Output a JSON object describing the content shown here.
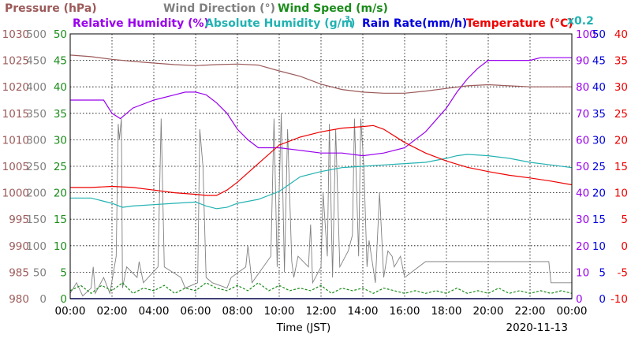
{
  "chart_data": {
    "type": "line",
    "date": "2020-11-13",
    "xlabel": "Time (JST)",
    "x_ticks": [
      "00:00",
      "02:00",
      "04:00",
      "06:00",
      "08:00",
      "10:00",
      "12:00",
      "14:00",
      "16:00",
      "18:00",
      "20:00",
      "22:00",
      "00:00"
    ],
    "legend": [
      {
        "label": "Pressure (hPa)",
        "color": "#9c5a5a"
      },
      {
        "label": "Wind Direction (°)",
        "color": "#808080"
      },
      {
        "label": "Wind Speed (m/s)",
        "color": "#1a8c1a"
      },
      {
        "label": "Relative Humidity (%)",
        "color": "#9900ee"
      },
      {
        "label": "Absolute Humidity (g/m",
        "sup": "3",
        "tail": ")",
        "color": "#22b2b2"
      },
      {
        "label": "Rain Rate(mm/h)",
        "color": "#0000dd"
      },
      {
        "label": "Temperature (°C)",
        "color": "#ee0000"
      },
      {
        "label": "x0.2",
        "color": "#22b2b2"
      }
    ],
    "axes": {
      "pressure": {
        "color": "#9c5a5a",
        "range": [
          980,
          1030
        ],
        "ticks": [
          "1030",
          "1025",
          "1020",
          "1015",
          "1010",
          "1005",
          "1000",
          "995",
          "990",
          "985",
          "980"
        ]
      },
      "wind_direction": {
        "color": "#808080",
        "range": [
          0,
          500
        ],
        "ticks": [
          "500",
          "450",
          "400",
          "350",
          "300",
          "250",
          "200",
          "150",
          "100",
          "50",
          "0"
        ]
      },
      "wind_speed": {
        "color": "#1a8c1a",
        "range": [
          0,
          50
        ],
        "ticks": [
          "50",
          "45",
          "40",
          "35",
          "30",
          "25",
          "20",
          "15",
          "10",
          "5",
          "0"
        ]
      },
      "relative_humidity": {
        "color": "#9900ee",
        "range": [
          0,
          100
        ],
        "ticks": [
          "100",
          "90",
          "80",
          "70",
          "60",
          "50",
          "40",
          "30",
          "20",
          "10",
          "0"
        ]
      },
      "rain_rate": {
        "color": "#0000dd",
        "range": [
          0,
          50
        ],
        "ticks": [
          "50",
          "45",
          "40",
          "35",
          "30",
          "25",
          "20",
          "15",
          "10",
          "5",
          "0"
        ]
      },
      "temperature": {
        "color": "#ee0000",
        "range": [
          -10,
          40
        ],
        "ticks": [
          "40",
          "35",
          "30",
          "25",
          "20",
          "15",
          "10",
          "5",
          "0",
          "-5",
          "-10"
        ]
      }
    },
    "grid": true,
    "series": [
      {
        "name": "Pressure (hPa)",
        "axis": "pressure",
        "color": "#9c5a5a",
        "x": [
          0,
          1,
          2,
          3,
          4,
          5,
          6,
          7,
          8,
          9,
          10,
          11,
          12,
          13,
          14,
          15,
          16,
          17,
          18,
          19,
          20,
          21,
          22,
          23,
          24
        ],
        "y": [
          1026,
          1025.7,
          1025.2,
          1024.8,
          1024.5,
          1024.2,
          1024,
          1024.2,
          1024.3,
          1024.1,
          1023,
          1022,
          1020.5,
          1019.5,
          1019,
          1018.8,
          1018.8,
          1019.2,
          1019.7,
          1020.2,
          1020.4,
          1020.2,
          1020,
          1020,
          1020
        ]
      },
      {
        "name": "Relative Humidity (%)",
        "axis": "relative_humidity",
        "color": "#9900ee",
        "x": [
          0,
          1,
          1.6,
          2,
          2.4,
          2.7,
          3,
          4,
          5,
          5.5,
          6,
          6.5,
          7,
          7.5,
          8,
          8.5,
          9,
          9.5,
          10,
          11,
          12,
          13,
          14,
          15,
          16,
          17,
          18,
          18.5,
          19,
          19.5,
          20,
          21,
          22,
          22.5,
          23,
          24
        ],
        "y": [
          75,
          75,
          75,
          70,
          68,
          70,
          72,
          75,
          77,
          78,
          78,
          77,
          74,
          70,
          64,
          60,
          57,
          57,
          57,
          56,
          55,
          55,
          54,
          55,
          57,
          63,
          72,
          78,
          83,
          87,
          90,
          90,
          90,
          91,
          91,
          91
        ]
      },
      {
        "name": "Absolute Humidity x0.2",
        "axis": "relative_humidity",
        "color": "#22b2b2",
        "x": [
          0,
          1,
          2,
          2.5,
          3,
          4,
          5,
          6,
          6.5,
          7,
          7.5,
          8,
          9,
          10,
          11,
          12,
          13,
          14,
          15,
          16,
          17,
          18,
          18.5,
          19,
          20,
          21,
          22,
          23,
          24
        ],
        "y": [
          38,
          38,
          36,
          34.5,
          35,
          35.5,
          36,
          36.5,
          35,
          34,
          34.5,
          36,
          37.5,
          40.5,
          46,
          48,
          49.5,
          50,
          50.5,
          51,
          51.5,
          53,
          54,
          54.5,
          54,
          53,
          51.5,
          50.5,
          49.5
        ]
      },
      {
        "name": "Temperature (°C)",
        "axis": "temperature",
        "color": "#ee0000",
        "x": [
          0,
          1,
          2,
          3,
          4,
          5,
          6,
          6.5,
          7,
          7.5,
          8,
          9,
          10,
          11,
          12,
          13,
          14,
          14.5,
          15,
          16,
          17,
          18,
          19,
          20,
          21,
          22,
          23,
          24
        ],
        "y": [
          11,
          11,
          11.2,
          11,
          10.5,
          10,
          9.7,
          9.5,
          9.5,
          10.5,
          12,
          15.5,
          19,
          20.5,
          21.5,
          22.2,
          22.5,
          22.7,
          22,
          19.5,
          17.5,
          16,
          14.8,
          14,
          13.3,
          12.8,
          12.2,
          11.5
        ]
      },
      {
        "name": "Wind Direction (°)",
        "axis": "wind_direction",
        "color": "#808080",
        "x": [
          0,
          0.3,
          0.6,
          1.0,
          1.1,
          1.2,
          1.6,
          1.9,
          2.2,
          2.3,
          2.35,
          2.45,
          2.5,
          2.7,
          3.2,
          3.3,
          3.5,
          4.2,
          4.35,
          4.5,
          5.3,
          5.5,
          6.1,
          6.2,
          6.35,
          6.5,
          6.8,
          7.5,
          7.7,
          8.4,
          8.5,
          8.7,
          9.6,
          9.75,
          9.9,
          10.1,
          10.25,
          10.4,
          10.6,
          10.7,
          10.9,
          11.4,
          11.5,
          11.6,
          12.0,
          12.1,
          12.3,
          12.4,
          12.55,
          12.7,
          12.9,
          13.3,
          13.5,
          13.6,
          13.8,
          13.9,
          14.05,
          14.2,
          14.3,
          14.6,
          14.8,
          15.0,
          15.2,
          15.4,
          15.5,
          15.8,
          16.0,
          17.0,
          18.0,
          19.0,
          20.0,
          21.0,
          22.0,
          22.5,
          22.9,
          23.0,
          23.5,
          24.0
        ],
        "y": [
          10,
          30,
          5,
          20,
          60,
          10,
          40,
          10,
          80,
          330,
          300,
          340,
          20,
          60,
          40,
          70,
          30,
          60,
          340,
          60,
          40,
          20,
          30,
          320,
          250,
          40,
          30,
          20,
          40,
          60,
          100,
          30,
          80,
          340,
          60,
          350,
          50,
          320,
          70,
          40,
          80,
          60,
          140,
          30,
          60,
          200,
          80,
          330,
          40,
          320,
          60,
          90,
          120,
          340,
          80,
          340,
          250,
          60,
          110,
          30,
          200,
          40,
          90,
          80,
          60,
          80,
          40,
          70,
          70,
          70,
          70,
          70,
          70,
          70,
          70,
          30,
          30,
          30
        ]
      },
      {
        "name": "Wind Speed (m/s)",
        "axis": "wind_speed",
        "color": "#1a8c1a",
        "x": [
          0,
          0.5,
          1,
          1.5,
          2,
          2.5,
          3,
          3.5,
          4,
          4.5,
          5,
          5.5,
          6,
          6.5,
          7,
          7.5,
          8,
          8.5,
          9,
          9.5,
          10,
          10.5,
          11,
          11.5,
          12,
          12.5,
          13,
          13.5,
          14,
          14.5,
          15,
          15.5,
          16,
          16.5,
          17,
          17.5,
          18,
          18.5,
          19,
          19.5,
          20,
          20.5,
          21,
          21.5,
          22,
          22.5,
          23,
          23.5,
          24
        ],
        "y": [
          1.5,
          2.5,
          1,
          2.5,
          1.5,
          3,
          1,
          2,
          1.5,
          2.5,
          1,
          2,
          1.5,
          3,
          2,
          1.5,
          2.5,
          1.5,
          3,
          1.5,
          2.5,
          1.5,
          2,
          1.5,
          2.5,
          1,
          2,
          1.5,
          2,
          1,
          2,
          1.5,
          1,
          1.5,
          1,
          1.5,
          1,
          2,
          1,
          1.5,
          1,
          2,
          1,
          1.5,
          1,
          1.5,
          1,
          1.5,
          1
        ]
      },
      {
        "name": "Rain Rate(mm/h)",
        "axis": "rain_rate",
        "color": "#0000dd",
        "x": [
          0,
          24
        ],
        "y": [
          0,
          0
        ]
      }
    ]
  }
}
